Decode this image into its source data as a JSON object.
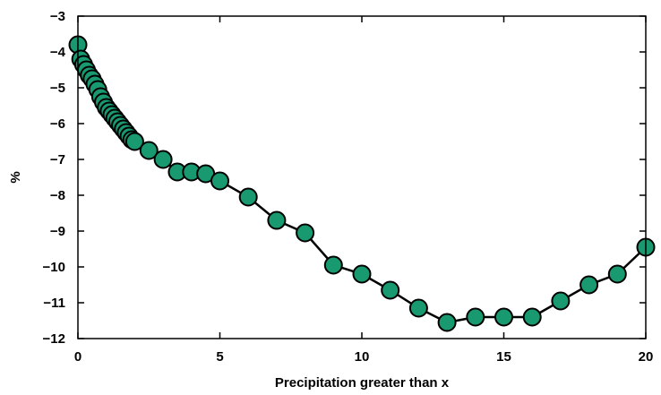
{
  "chart_data": {
    "type": "line",
    "title": "",
    "xlabel": "Precipitation greater than x",
    "ylabel": "%",
    "xlim": [
      0,
      20
    ],
    "ylim": [
      -12,
      -3
    ],
    "xticks": [
      0,
      5,
      10,
      15,
      20
    ],
    "yticks": [
      -3,
      -4,
      -5,
      -6,
      -7,
      -8,
      -9,
      -10,
      -11,
      -12
    ],
    "xtick_labels": [
      "0",
      "5",
      "10",
      "15",
      "20"
    ],
    "ytick_labels": [
      "−3",
      "−4",
      "−5",
      "−6",
      "−7",
      "−8",
      "−9",
      "−10",
      "−11",
      "−12"
    ],
    "grid": false,
    "legend": false,
    "marker_color": "#199970",
    "line_color": "#000000",
    "series": [
      {
        "x": [
          0,
          0.1,
          0.2,
          0.3,
          0.4,
          0.5,
          0.6,
          0.7,
          0.8,
          0.9,
          1.0,
          1.1,
          1.2,
          1.3,
          1.4,
          1.5,
          1.6,
          1.7,
          1.8,
          1.9,
          2.0,
          2.5,
          3.0,
          3.5,
          4.0,
          4.5,
          5,
          6,
          7,
          8,
          9,
          10,
          11,
          12,
          13,
          14,
          15,
          16,
          17,
          18,
          19,
          20
        ],
        "y": [
          -3.8,
          -4.2,
          -4.35,
          -4.5,
          -4.65,
          -4.75,
          -4.9,
          -5.05,
          -5.25,
          -5.4,
          -5.55,
          -5.65,
          -5.75,
          -5.85,
          -5.95,
          -6.05,
          -6.15,
          -6.25,
          -6.35,
          -6.45,
          -6.5,
          -6.75,
          -7.0,
          -7.35,
          -7.35,
          -7.4,
          -7.6,
          -8.05,
          -8.7,
          -9.05,
          -9.95,
          -10.2,
          -10.65,
          -11.15,
          -11.55,
          -11.4,
          -11.4,
          -11.4,
          -10.95,
          -10.5,
          -10.2,
          -9.45
        ]
      }
    ]
  }
}
